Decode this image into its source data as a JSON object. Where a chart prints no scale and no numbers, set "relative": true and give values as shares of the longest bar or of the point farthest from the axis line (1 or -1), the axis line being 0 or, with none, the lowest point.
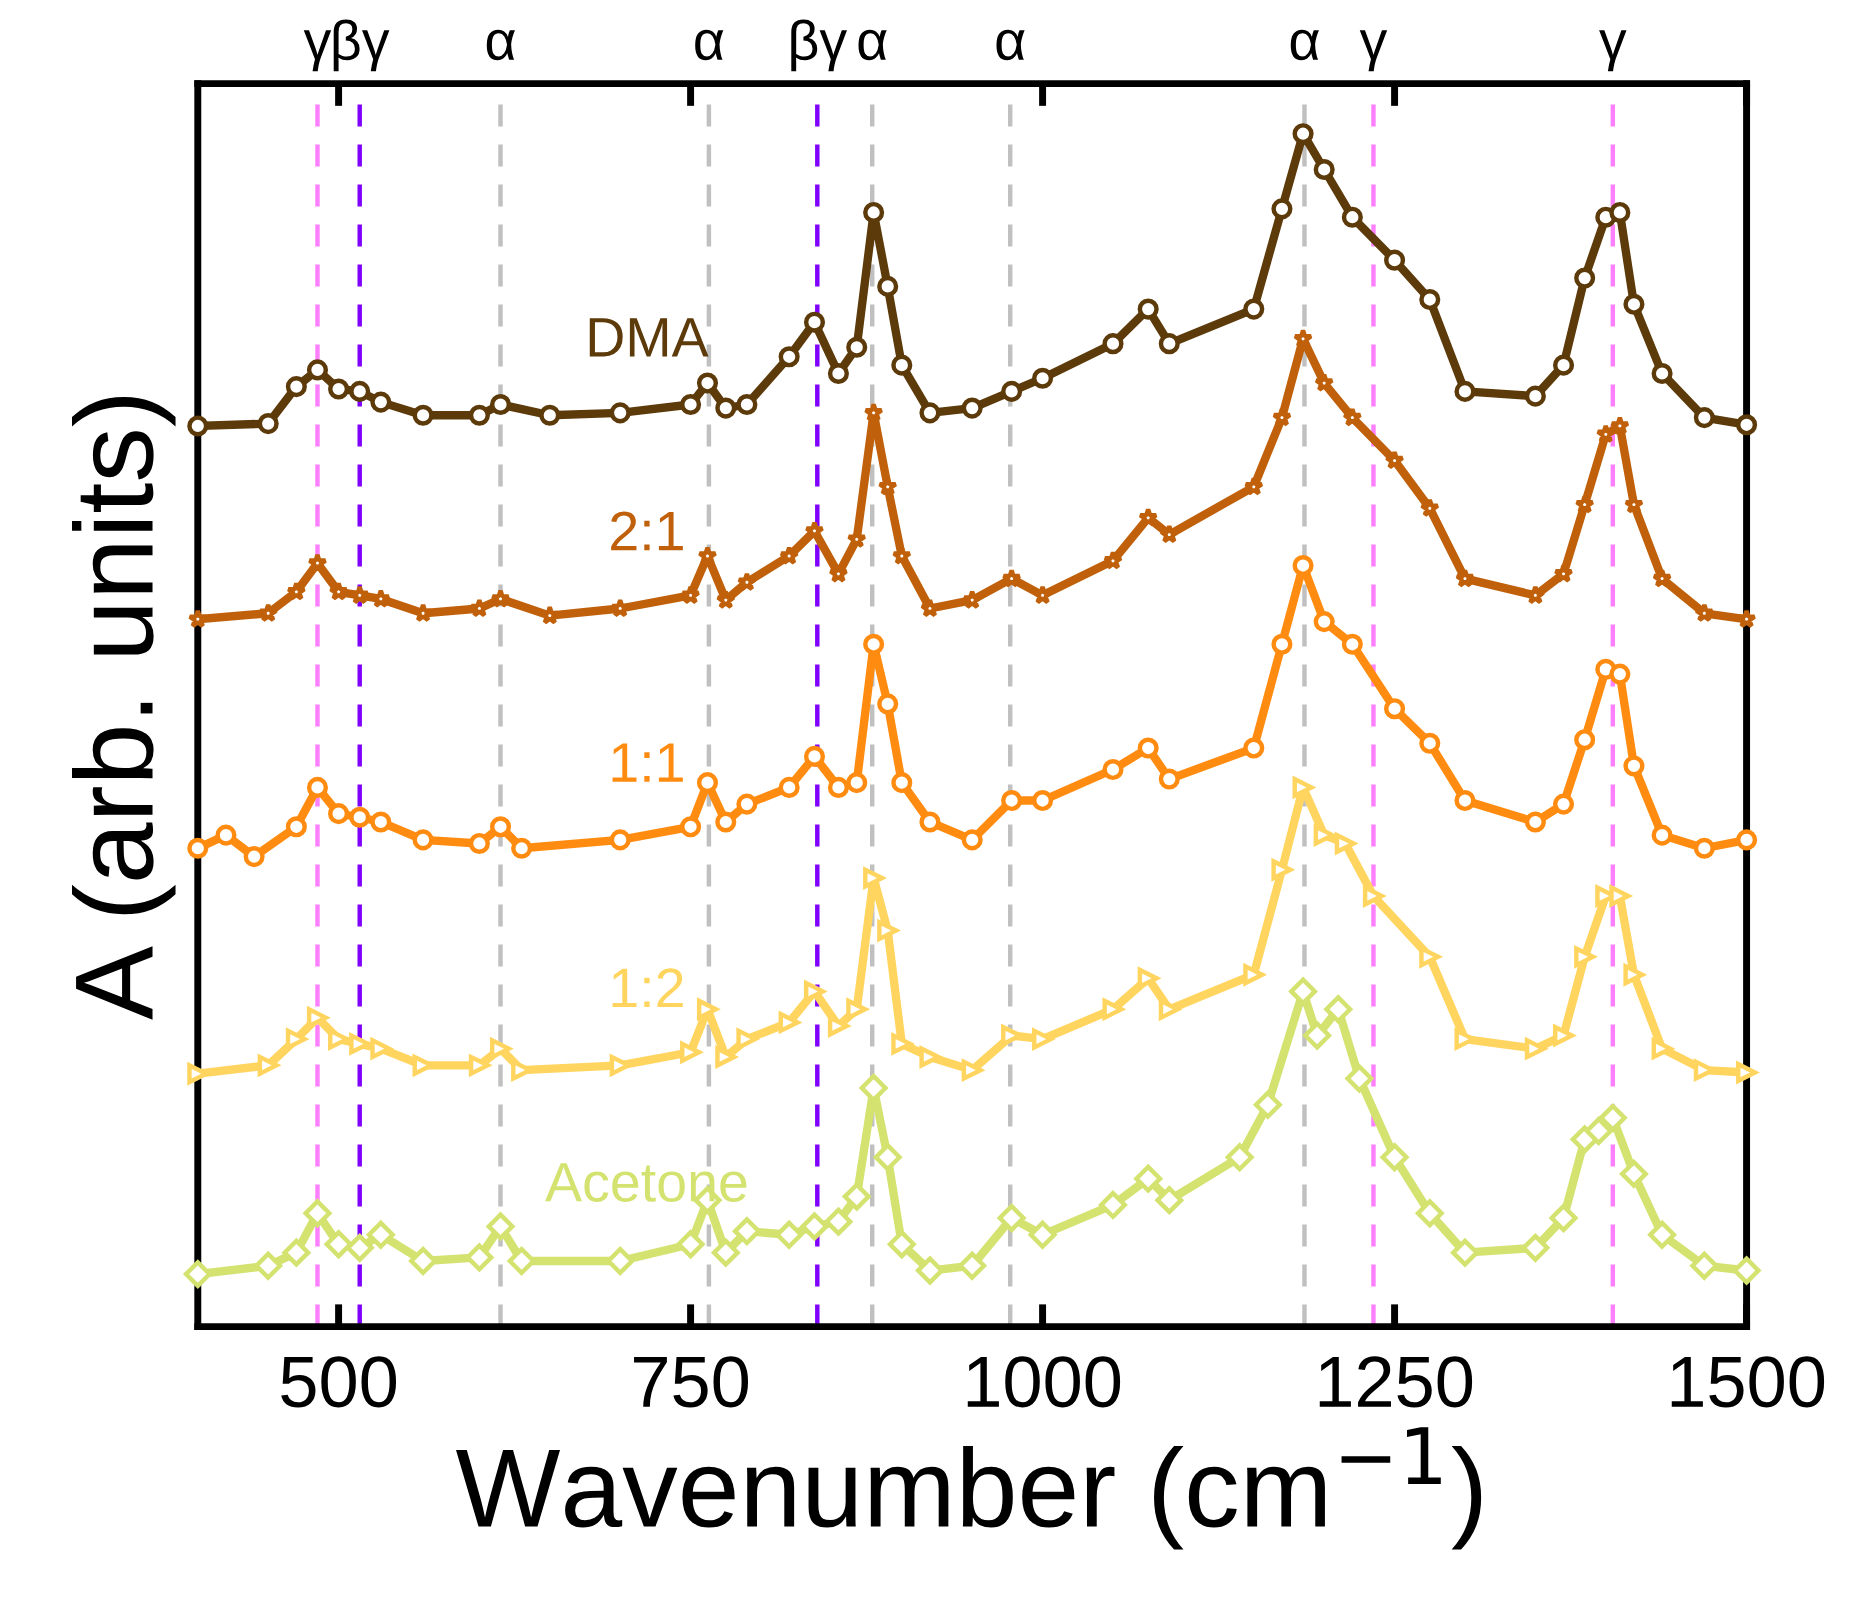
{
  "chart_data": {
    "type": "line",
    "relative": true,
    "xlabel": "Wavenumber (cm$^{−1}$)",
    "ylabel": "A (arb. units)",
    "xlim": [
      400,
      1500
    ],
    "xticks": [
      500,
      750,
      1000,
      1250,
      1500
    ],
    "grid": false,
    "legend": false,
    "line_style": "solid",
    "ref_lines": [
      {
        "axis": "x",
        "value": 485,
        "label": "γ",
        "color": "#ff80ff",
        "line_style": "dashed"
      },
      {
        "axis": "x",
        "value": 515,
        "label": "βγ",
        "color": "#8000ff",
        "line_style": "dashed"
      },
      {
        "axis": "x",
        "value": 615,
        "label": "α",
        "color": "#c0c0c0",
        "line_style": "dashed"
      },
      {
        "axis": "x",
        "value": 763,
        "label": "α",
        "color": "#c0c0c0",
        "line_style": "dashed"
      },
      {
        "axis": "x",
        "value": 840,
        "label": "βγ",
        "color": "#8000ff",
        "line_style": "dashed"
      },
      {
        "axis": "x",
        "value": 879,
        "label": "α",
        "color": "#c0c0c0",
        "line_style": "dashed"
      },
      {
        "axis": "x",
        "value": 977,
        "label": "α",
        "color": "#c0c0c0",
        "line_style": "dashed"
      },
      {
        "axis": "x",
        "value": 1186,
        "label": "α",
        "color": "#c0c0c0",
        "line_style": "dashed"
      },
      {
        "axis": "x",
        "value": 1235,
        "label": "γ",
        "color": "#ff80ff",
        "line_style": "dashed"
      },
      {
        "axis": "x",
        "value": 1405,
        "label": "γ",
        "color": "#ff80ff",
        "line_style": "dashed"
      }
    ],
    "series": [
      {
        "name": "DMA",
        "color": "#5c3a0a",
        "marker": "circle",
        "x": [
          400,
          450,
          470,
          485,
          500,
          515,
          530,
          560,
          600,
          615,
          650,
          700,
          750,
          762,
          775,
          790,
          820,
          838,
          855,
          868,
          880,
          890,
          900,
          920,
          950,
          978,
          1000,
          1050,
          1075,
          1090,
          1150,
          1170,
          1185,
          1200,
          1220,
          1250,
          1275,
          1300,
          1350,
          1370,
          1385,
          1400,
          1410,
          1420,
          1440,
          1470,
          1500
        ],
        "values": [
          0.755,
          0.757,
          0.788,
          0.802,
          0.786,
          0.784,
          0.775,
          0.764,
          0.764,
          0.773,
          0.764,
          0.766,
          0.773,
          0.791,
          0.77,
          0.773,
          0.813,
          0.842,
          0.799,
          0.821,
          0.934,
          0.872,
          0.806,
          0.766,
          0.77,
          0.784,
          0.795,
          0.824,
          0.853,
          0.824,
          0.853,
          0.937,
          1,
          0.97,
          0.93,
          0.894,
          0.861,
          0.784,
          0.78,
          0.806,
          0.879,
          0.93,
          0.934,
          0.857,
          0.799,
          0.762,
          0.756
        ]
      },
      {
        "name": "2:1",
        "color": "#c0600a",
        "marker": "star",
        "x": [
          400,
          450,
          470,
          485,
          500,
          515,
          530,
          560,
          600,
          615,
          650,
          700,
          750,
          762,
          775,
          790,
          820,
          838,
          855,
          868,
          880,
          890,
          900,
          920,
          950,
          978,
          1000,
          1050,
          1075,
          1090,
          1150,
          1170,
          1185,
          1200,
          1220,
          1250,
          1275,
          1300,
          1350,
          1370,
          1385,
          1400,
          1410,
          1420,
          1440,
          1470,
          1500
        ],
        "values": [
          0.593,
          0.598,
          0.616,
          0.64,
          0.616,
          0.613,
          0.61,
          0.598,
          0.602,
          0.61,
          0.596,
          0.602,
          0.613,
          0.646,
          0.609,
          0.624,
          0.646,
          0.667,
          0.631,
          0.66,
          0.766,
          0.704,
          0.646,
          0.602,
          0.609,
          0.627,
          0.613,
          0.642,
          0.678,
          0.664,
          0.704,
          0.762,
          0.828,
          0.791,
          0.762,
          0.726,
          0.686,
          0.627,
          0.613,
          0.631,
          0.689,
          0.748,
          0.755,
          0.689,
          0.627,
          0.598,
          0.593
        ]
      },
      {
        "name": "1:1",
        "color": "#ff8c10",
        "marker": "circle",
        "x": [
          400,
          420,
          440,
          470,
          485,
          500,
          515,
          530,
          560,
          600,
          615,
          630,
          700,
          750,
          762,
          775,
          790,
          820,
          838,
          855,
          868,
          880,
          890,
          900,
          920,
          950,
          978,
          1000,
          1050,
          1075,
          1090,
          1150,
          1170,
          1185,
          1200,
          1220,
          1250,
          1275,
          1300,
          1350,
          1370,
          1385,
          1400,
          1410,
          1420,
          1440,
          1470,
          1500
        ],
        "values": [
          0.401,
          0.412,
          0.394,
          0.419,
          0.452,
          0.43,
          0.427,
          0.423,
          0.408,
          0.405,
          0.419,
          0.401,
          0.408,
          0.419,
          0.456,
          0.423,
          0.438,
          0.452,
          0.478,
          0.452,
          0.456,
          0.572,
          0.522,
          0.456,
          0.423,
          0.408,
          0.441,
          0.441,
          0.467,
          0.485,
          0.459,
          0.485,
          0.572,
          0.638,
          0.591,
          0.572,
          0.518,
          0.489,
          0.441,
          0.423,
          0.438,
          0.492,
          0.551,
          0.547,
          0.47,
          0.412,
          0.401,
          0.408
        ]
      },
      {
        "name": "1:2",
        "color": "#ffd560",
        "marker": "triangle",
        "x": [
          400,
          450,
          470,
          485,
          500,
          515,
          530,
          560,
          600,
          615,
          630,
          700,
          750,
          762,
          775,
          790,
          820,
          838,
          855,
          868,
          880,
          890,
          900,
          920,
          950,
          978,
          1000,
          1050,
          1075,
          1090,
          1150,
          1170,
          1185,
          1200,
          1215,
          1235,
          1275,
          1300,
          1350,
          1370,
          1385,
          1400,
          1410,
          1420,
          1440,
          1470,
          1500
        ],
        "values": [
          0.212,
          0.219,
          0.241,
          0.259,
          0.241,
          0.237,
          0.233,
          0.219,
          0.219,
          0.233,
          0.215,
          0.219,
          0.23,
          0.266,
          0.226,
          0.241,
          0.255,
          0.281,
          0.252,
          0.266,
          0.376,
          0.332,
          0.237,
          0.226,
          0.215,
          0.244,
          0.241,
          0.266,
          0.292,
          0.266,
          0.295,
          0.383,
          0.452,
          0.412,
          0.405,
          0.361,
          0.31,
          0.241,
          0.233,
          0.244,
          0.31,
          0.361,
          0.361,
          0.295,
          0.233,
          0.215,
          0.213
        ]
      },
      {
        "name": "Acetone",
        "color": "#d4e270",
        "marker": "diamond",
        "x": [
          400,
          450,
          470,
          485,
          500,
          515,
          530,
          560,
          600,
          615,
          630,
          700,
          750,
          762,
          775,
          790,
          820,
          838,
          855,
          868,
          880,
          890,
          900,
          920,
          950,
          978,
          1000,
          1050,
          1075,
          1090,
          1140,
          1160,
          1185,
          1195,
          1210,
          1225,
          1250,
          1275,
          1300,
          1350,
          1370,
          1385,
          1395,
          1405,
          1420,
          1440,
          1470,
          1500
        ],
        "values": [
          0.044,
          0.051,
          0.062,
          0.095,
          0.069,
          0.066,
          0.077,
          0.055,
          0.058,
          0.084,
          0.055,
          0.055,
          0.069,
          0.106,
          0.062,
          0.08,
          0.077,
          0.084,
          0.088,
          0.109,
          0.2,
          0.142,
          0.069,
          0.047,
          0.051,
          0.091,
          0.077,
          0.102,
          0.124,
          0.106,
          0.142,
          0.186,
          0.281,
          0.244,
          0.266,
          0.208,
          0.142,
          0.095,
          0.062,
          0.066,
          0.091,
          0.157,
          0.164,
          0.175,
          0.128,
          0.077,
          0.051,
          0.047
        ]
      }
    ]
  }
}
